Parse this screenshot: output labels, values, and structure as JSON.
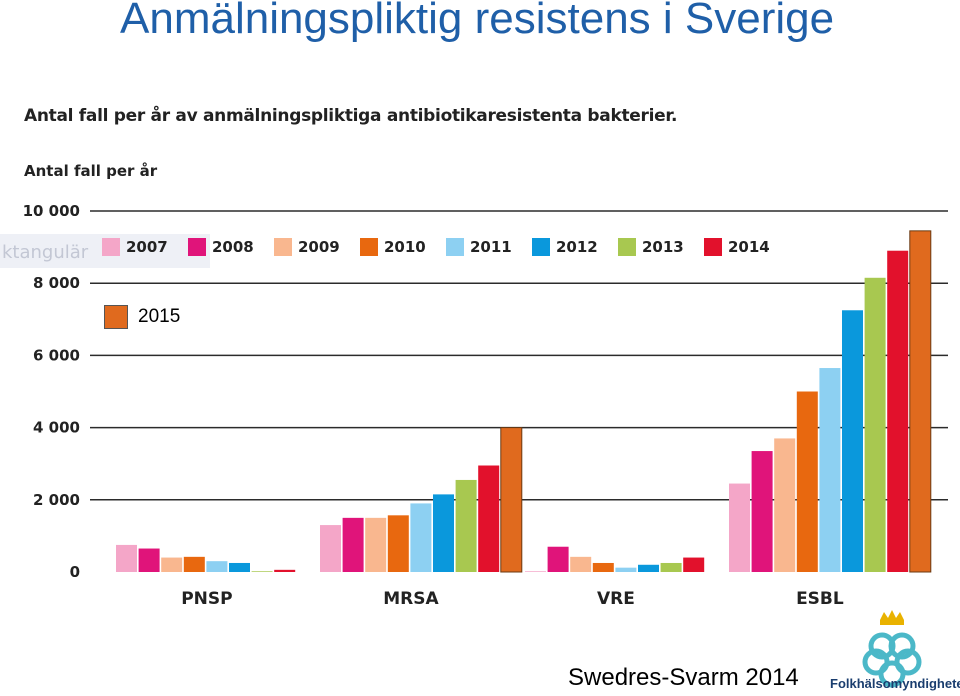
{
  "slide_title": "Anmälningspliktig resistens i Sverige",
  "ghost_label": "ktangulär",
  "source": "Swedres-Svarm 2014",
  "logo_text": "Folkhälsomyndigheten",
  "colors": {
    "2007": "#f4a6c8",
    "2008": "#e0147a",
    "2009": "#f9b78f",
    "2010": "#e8680f",
    "2011": "#8dd0f2",
    "2012": "#0a98dc",
    "2013": "#a8c850",
    "2014": "#e2112c",
    "2015": "#e06a1e",
    "title": "#1f5fa8"
  },
  "chart_data": {
    "type": "bar",
    "title": "Antal fall per år av anmälningspliktiga antibiotikaresistenta bakterier.",
    "ylabel": "Antal fall per år",
    "xlabel": "",
    "ylim": [
      0,
      10000
    ],
    "yticks": [
      "0",
      "2 000",
      "4 000",
      "6 000",
      "8 000",
      "10 000"
    ],
    "ytick_values": [
      0,
      2000,
      4000,
      6000,
      8000,
      10000
    ],
    "categories": [
      "PNSP",
      "MRSA",
      "VRE",
      "ESBL"
    ],
    "legend_position": "top-left",
    "series": [
      {
        "name": "2007",
        "values": [
          750,
          1300,
          20,
          2450
        ]
      },
      {
        "name": "2008",
        "values": [
          650,
          1500,
          700,
          3350
        ]
      },
      {
        "name": "2009",
        "values": [
          400,
          1500,
          420,
          3700
        ]
      },
      {
        "name": "2010",
        "values": [
          420,
          1570,
          250,
          5000
        ]
      },
      {
        "name": "2011",
        "values": [
          300,
          1900,
          120,
          5650
        ]
      },
      {
        "name": "2012",
        "values": [
          250,
          2150,
          200,
          7250
        ]
      },
      {
        "name": "2013",
        "values": [
          20,
          2550,
          250,
          8150
        ]
      },
      {
        "name": "2014",
        "values": [
          60,
          2950,
          400,
          8900
        ]
      },
      {
        "name": "2015",
        "values": [
          null,
          4000,
          null,
          9450
        ]
      }
    ]
  }
}
